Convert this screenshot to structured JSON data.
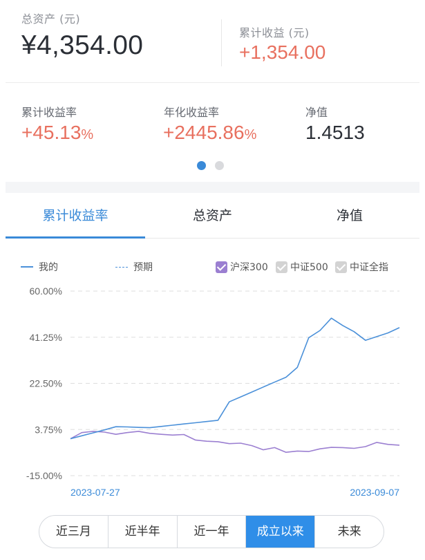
{
  "summary": {
    "total_assets_label": "总资产 (元)",
    "total_assets_value": "¥4,354.00",
    "cumulative_income_label": "累计收益 (元)",
    "cumulative_income_value": "+1,354.00"
  },
  "metrics": [
    {
      "label": "累计收益率",
      "value": "+45.13",
      "unit": "%"
    },
    {
      "label": "年化收益率",
      "value": "+2445.86",
      "unit": "%"
    },
    {
      "label": "净值",
      "value": "1.4513",
      "unit": ""
    }
  ],
  "pager": {
    "count": 2,
    "active_index": 0
  },
  "tabs": [
    {
      "label": "累计收益率",
      "active": true
    },
    {
      "label": "总资产",
      "active": false
    },
    {
      "label": "净值",
      "active": false
    }
  ],
  "legend": {
    "mine": "我的",
    "expected": "预期",
    "benchmarks": [
      {
        "label": "沪深300",
        "checked": true,
        "color": "#9b7fd1"
      },
      {
        "label": "中证500",
        "checked": true,
        "color": "#cfcfcf"
      },
      {
        "label": "中证全指",
        "checked": true,
        "color": "#cfcfcf"
      }
    ]
  },
  "colors": {
    "accent": "#3a8ad8",
    "positive": "#e8705f",
    "mine_line": "#4a90d9",
    "benchmark_line": "#9b7fd1"
  },
  "chart_data": {
    "type": "line",
    "x_start_label": "2023-07-27",
    "x_end_label": "2023-09-07",
    "y_ticks": [
      "60.00%",
      "41.25%",
      "22.50%",
      "3.75%",
      "-15.00%"
    ],
    "ylim": [
      -15,
      60
    ],
    "grid": true,
    "series": [
      {
        "name": "我的",
        "color": "#4a90d9",
        "values": [
          0,
          1.2,
          2.4,
          3.6,
          4.9,
          4.8,
          4.6,
          4.5,
          5.0,
          5.5,
          6.0,
          6.5,
          7.0,
          7.5,
          15.0,
          17.0,
          19.0,
          21.0,
          23.0,
          25.0,
          29.0,
          41.0,
          44.0,
          49.0,
          46.0,
          43.5,
          40.0,
          41.5,
          43.0,
          45.13
        ]
      },
      {
        "name": "沪深300",
        "color": "#9b7fd1",
        "values": [
          0,
          2.5,
          3.0,
          2.7,
          1.8,
          2.5,
          3.0,
          2.2,
          1.8,
          1.5,
          1.7,
          -0.5,
          -1.0,
          -1.2,
          -2.0,
          -1.8,
          -2.8,
          -4.5,
          -3.6,
          -5.5,
          -5.0,
          -5.2,
          -4.1,
          -3.5,
          -3.6,
          -3.9,
          -3.2,
          -1.5,
          -2.3,
          -2.6
        ]
      }
    ]
  },
  "ranges": [
    {
      "label": "近三月",
      "active": false
    },
    {
      "label": "近半年",
      "active": false
    },
    {
      "label": "近一年",
      "active": false
    },
    {
      "label": "成立以来",
      "active": true
    },
    {
      "label": "未来",
      "active": false
    }
  ]
}
